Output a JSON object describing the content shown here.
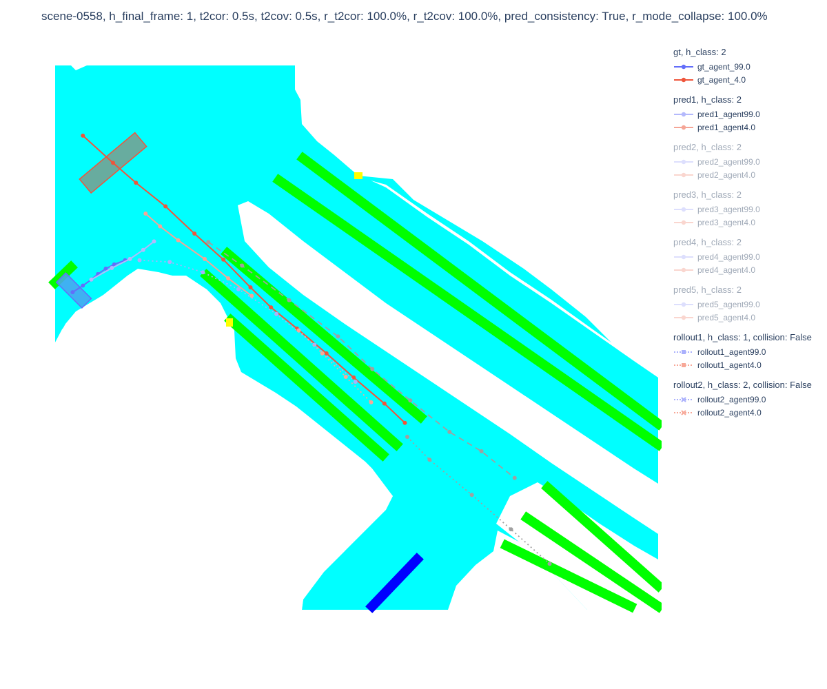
{
  "title": "scene-0558, h_final_frame: 1, t2cor: 0.5s, t2cov: 0.5s, r_t2cor: 100.0%, r_t2cov: 100.0%, pred_consistency: True, r_mode_collapse: 100.0%",
  "colors": {
    "drivable": "#00ffff",
    "lane": "#00ff00",
    "crosswalk": "#0000ff",
    "marker": "#ffff00",
    "agent99": "#636efa",
    "agent4": "#ef553b",
    "rollout1_agent99": "#aab0fc",
    "rollout1_agent4": "#f7a898",
    "rollout2_agent99": "#8f96fb",
    "rollout2_agent4": "#a0a0a0",
    "box99_fill": "#4aa3f0",
    "box4_fill": "#7a9e8e"
  },
  "legend": [
    {
      "title": "gt, h_class: 2",
      "dim": false,
      "items": [
        {
          "label": "gt_agent_99.0",
          "color": "#636efa",
          "dash": "solid",
          "symbol": "circle"
        },
        {
          "label": "gt_agent_4.0",
          "color": "#ef553b",
          "dash": "solid",
          "symbol": "circle"
        }
      ]
    },
    {
      "title": "pred1, h_class: 2",
      "dim": false,
      "items": [
        {
          "label": "pred1_agent99.0",
          "color": "#b4b9fc",
          "dash": "solid",
          "symbol": "circle"
        },
        {
          "label": "pred1_agent4.0",
          "color": "#f5a596",
          "dash": "solid",
          "symbol": "circle"
        }
      ]
    },
    {
      "title": "pred2, h_class: 2",
      "dim": true,
      "items": [
        {
          "label": "pred2_agent99.0",
          "color": "#b4b9fc",
          "dash": "solid",
          "symbol": "circle"
        },
        {
          "label": "pred2_agent4.0",
          "color": "#f5a596",
          "dash": "solid",
          "symbol": "circle"
        }
      ]
    },
    {
      "title": "pred3, h_class: 2",
      "dim": true,
      "items": [
        {
          "label": "pred3_agent99.0",
          "color": "#b4b9fc",
          "dash": "solid",
          "symbol": "circle"
        },
        {
          "label": "pred3_agent4.0",
          "color": "#f5a596",
          "dash": "solid",
          "symbol": "circle"
        }
      ]
    },
    {
      "title": "pred4, h_class: 2",
      "dim": true,
      "items": [
        {
          "label": "pred4_agent99.0",
          "color": "#b4b9fc",
          "dash": "solid",
          "symbol": "circle"
        },
        {
          "label": "pred4_agent4.0",
          "color": "#f5a596",
          "dash": "solid",
          "symbol": "circle"
        }
      ]
    },
    {
      "title": "pred5, h_class: 2",
      "dim": true,
      "items": [
        {
          "label": "pred5_agent99.0",
          "color": "#b4b9fc",
          "dash": "solid",
          "symbol": "circle"
        },
        {
          "label": "pred5_agent4.0",
          "color": "#f5a596",
          "dash": "solid",
          "symbol": "circle"
        }
      ]
    },
    {
      "title": "rollout1, h_class: 1, collision: False",
      "dim": false,
      "items": [
        {
          "label": "rollout1_agent99.0",
          "color": "#aab0fc",
          "dash": "dot",
          "symbol": "square"
        },
        {
          "label": "rollout1_agent4.0",
          "color": "#f7a898",
          "dash": "dot",
          "symbol": "square"
        }
      ]
    },
    {
      "title": "rollout2, h_class: 2, collision: False",
      "dim": false,
      "items": [
        {
          "label": "rollout2_agent99.0",
          "color": "#aab0fc",
          "dash": "dot",
          "symbol": "x"
        },
        {
          "label": "rollout2_agent4.0",
          "color": "#f7a898",
          "dash": "dot",
          "symbol": "x"
        }
      ]
    }
  ],
  "chart_data": {
    "type": "scatter",
    "title": "scene-0558, h_final_frame: 1, t2cor: 0.5s, t2cov: 0.5s, r_t2cor: 100.0%, r_t2cov: 100.0%, pred_consistency: True, r_mode_collapse: 100.0%",
    "xlabel": "",
    "ylabel": "",
    "xlim": [
      0,
      100
    ],
    "ylim": [
      0,
      90
    ],
    "grid": false,
    "legend_position": "right",
    "series": [
      {
        "name": "gt_agent_99.0",
        "dash": "solid",
        "color": "#636efa",
        "x": [
          2.9,
          4.6,
          6.0,
          7.1,
          8.4,
          9.8,
          11.6
        ],
        "y": [
          52.5,
          53.6,
          54.6,
          55.5,
          56.4,
          57.1,
          57.8
        ]
      },
      {
        "name": "gt_agent_4.0",
        "dash": "solid",
        "color": "#ef553b",
        "x": [
          4.6,
          9.6,
          13.4,
          18.3,
          23.1,
          27.9,
          32.4,
          35.8,
          40.1,
          45.0,
          49.5,
          54.6,
          58.0
        ],
        "y": [
          78.4,
          73.9,
          70.6,
          66.7,
          62.2,
          57.9,
          53.3,
          50.0,
          46.5,
          42.4,
          38.4,
          34.1,
          30.9
        ]
      },
      {
        "name": "pred1_agent99.0",
        "dash": "solid",
        "color": "#b4b9fc",
        "x": [
          6.0,
          9.4,
          12.4,
          14.6,
          16.4
        ],
        "y": [
          54.6,
          56.5,
          58.0,
          59.5,
          60.9
        ]
      },
      {
        "name": "pred1_agent4.0",
        "dash": "solid",
        "color": "#f5a596",
        "x": [
          15.0,
          17.4,
          20.4,
          24.8,
          28.7,
          32.6
        ],
        "y": [
          65.5,
          63.4,
          61.1,
          58.0,
          54.8,
          51.9
        ]
      },
      {
        "name": "rollout1_agent99.0",
        "dash": "dot",
        "color": "#aab0fc",
        "x": [
          14.0,
          19.0,
          24.5,
          30.4,
          36.7,
          43.0,
          49.8
        ],
        "y": [
          57.8,
          57.5,
          55.8,
          53.0,
          48.9,
          43.8,
          37.7
        ]
      },
      {
        "name": "rollout1_agent4.0",
        "dash": "dot",
        "color": "#f7a898",
        "x": [
          40.4,
          44.3,
          48.2,
          52.4
        ],
        "y": [
          46.2,
          42.4,
          38.5,
          34.3
        ]
      },
      {
        "name": "rollout2_agent99.0",
        "dash": "dash",
        "color": "#a0a0a0",
        "x": [
          25.4,
          31.0,
          38.8,
          46.9,
          52.6,
          58.9,
          65.4,
          70.7,
          76.2
        ],
        "y": [
          60.8,
          56.9,
          51.2,
          45.2,
          39.8,
          34.6,
          29.4,
          26.2,
          21.8
        ]
      },
      {
        "name": "rollout2_agent4.0",
        "dash": "dot",
        "color": "#a0a0a0",
        "x": [
          58.4,
          62.1,
          69.1,
          75.6,
          82.0
        ],
        "y": [
          28.6,
          24.8,
          19.0,
          13.3,
          7.6
        ]
      }
    ],
    "agents": [
      {
        "label": "agent 99 box",
        "x": 3.1,
        "y": 52.8,
        "length": 6.0,
        "width": 2.2,
        "heading_deg": 45,
        "fill": "#4aa3f0",
        "stroke": "#636efa"
      },
      {
        "label": "agent 4 box",
        "x": 9.6,
        "y": 73.9,
        "length": 12.0,
        "width": 3.0,
        "heading_deg": -40,
        "fill": "#7a9e8e",
        "stroke": "#ef553b"
      }
    ]
  }
}
